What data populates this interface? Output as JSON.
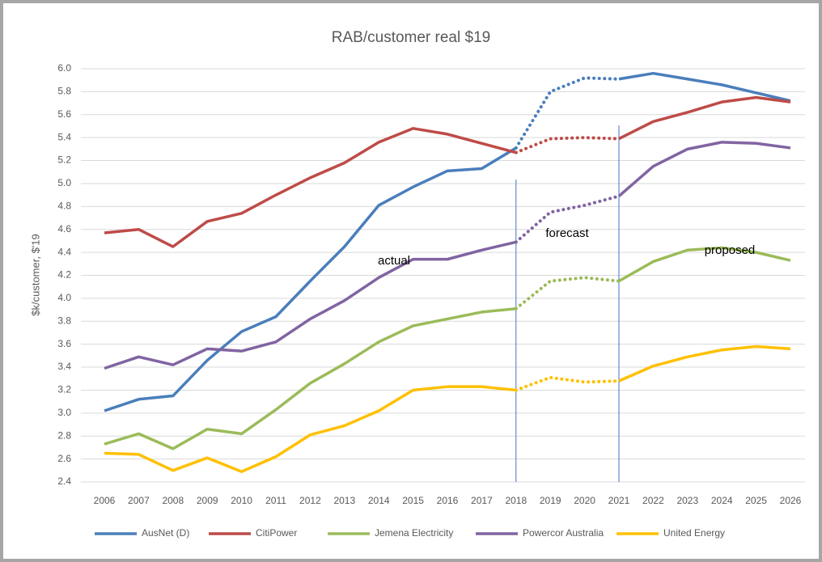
{
  "chart_data": {
    "type": "line",
    "title": "RAB/customer real $19",
    "y_label": "$k/customer, $'19",
    "categories": [
      "2006",
      "2007",
      "2008",
      "2009",
      "2010",
      "2011",
      "2012",
      "2013",
      "2014",
      "2015",
      "2016",
      "2017",
      "2018",
      "2019",
      "2020",
      "2021",
      "2022",
      "2023",
      "2024",
      "2025",
      "2026"
    ],
    "series": [
      {
        "name": "AusNet (D)",
        "color": "#4a7ebb",
        "values": [
          3.02,
          3.12,
          3.15,
          3.46,
          3.71,
          3.84,
          4.15,
          4.45,
          4.81,
          4.97,
          5.11,
          5.13,
          5.31,
          5.8,
          5.92,
          5.91,
          5.96,
          5.91,
          5.86,
          5.79,
          5.72
        ]
      },
      {
        "name": "CitiPower",
        "color": "#be4b48",
        "values": [
          4.57,
          4.6,
          4.45,
          4.67,
          4.74,
          4.9,
          5.05,
          5.18,
          5.36,
          5.48,
          5.43,
          5.35,
          5.27,
          5.39,
          5.4,
          5.39,
          5.54,
          5.62,
          5.71,
          5.75,
          5.71
        ]
      },
      {
        "name": "Jemena Electricity",
        "color": "#9bbb59",
        "values": [
          2.73,
          2.82,
          2.69,
          2.86,
          2.82,
          3.03,
          3.26,
          3.43,
          3.62,
          3.76,
          3.82,
          3.88,
          3.91,
          4.15,
          4.18,
          4.15,
          4.32,
          4.42,
          4.44,
          4.4,
          4.33
        ]
      },
      {
        "name": "Powercor Australia",
        "color": "#8064a2",
        "values": [
          3.39,
          3.49,
          3.42,
          3.56,
          3.54,
          3.62,
          3.82,
          3.98,
          4.18,
          4.34,
          4.34,
          4.42,
          4.49,
          4.75,
          4.81,
          4.89,
          5.15,
          5.3,
          5.36,
          5.35,
          5.31
        ]
      },
      {
        "name": "United Energy",
        "color": "#ffc000",
        "values": [
          2.65,
          2.64,
          2.5,
          2.61,
          2.49,
          2.62,
          2.81,
          2.89,
          3.02,
          3.2,
          3.23,
          3.23,
          3.2,
          3.31,
          3.27,
          3.28,
          3.41,
          3.49,
          3.55,
          3.58,
          3.56
        ]
      }
    ],
    "dotted_segment": [
      "2018",
      "2021"
    ],
    "vertical_lines": [
      "2018",
      "2021"
    ],
    "annotations": [
      "actual",
      "forecast",
      "proposed"
    ],
    "ylim": [
      2.4,
      6.0
    ],
    "yticks": [
      2.4,
      2.6,
      2.8,
      {
        "value": 3,
        "label": "3.0"
      },
      3.2,
      3.4,
      3.6,
      3.8,
      {
        "value": 4,
        "label": "4.0"
      },
      4.2,
      4.4,
      4.6,
      4.8,
      {
        "value": 5,
        "label": "5.0"
      },
      5.2,
      5.4,
      5.6,
      5.8,
      {
        "value": 6,
        "label": "6.0"
      }
    ],
    "grid": true,
    "legend": "bottom"
  }
}
